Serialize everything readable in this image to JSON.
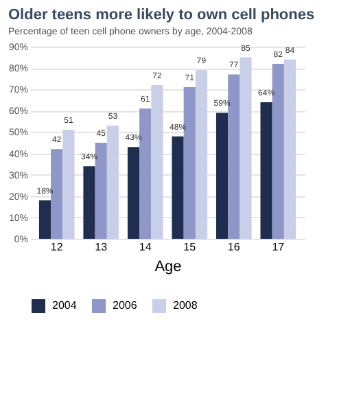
{
  "chart_data": {
    "type": "bar",
    "title": "Older teens more likely to own cell phones",
    "subtitle": "Percentage of teen cell phone owners by age, 2004-2008",
    "xlabel": "Age",
    "categories": [
      "12",
      "13",
      "14",
      "15",
      "16",
      "17"
    ],
    "series": [
      {
        "name": "2004",
        "color": "#1f2d4f",
        "values": [
          18,
          34,
          43,
          48,
          59,
          64
        ],
        "value_labels": [
          "18%",
          "34%",
          "43%",
          "48%",
          "59%",
          "64%"
        ]
      },
      {
        "name": "2006",
        "color": "#8f96c8",
        "values": [
          42,
          45,
          61,
          71,
          77,
          82
        ],
        "value_labels": [
          "42",
          "45",
          "61",
          "71",
          "77",
          "82"
        ]
      },
      {
        "name": "2008",
        "color": "#c9cfe8",
        "values": [
          51,
          53,
          72,
          79,
          85,
          84
        ],
        "value_labels": [
          "51",
          "53",
          "72",
          "79",
          "85",
          "84"
        ]
      }
    ],
    "ylim": [
      0,
      90
    ],
    "yticks": [
      {
        "value": 0,
        "label": "0%"
      },
      {
        "value": 10,
        "label": "10%"
      },
      {
        "value": 20,
        "label": "20%"
      },
      {
        "value": 30,
        "label": "30%"
      },
      {
        "value": 40,
        "label": "40%"
      },
      {
        "value": 50,
        "label": "50%"
      },
      {
        "value": 60,
        "label": "60%"
      },
      {
        "value": 70,
        "label": "70%"
      },
      {
        "value": 80,
        "label": "80%"
      },
      {
        "value": 90,
        "label": "90%"
      }
    ],
    "grid": "y",
    "legend": "bottom"
  }
}
